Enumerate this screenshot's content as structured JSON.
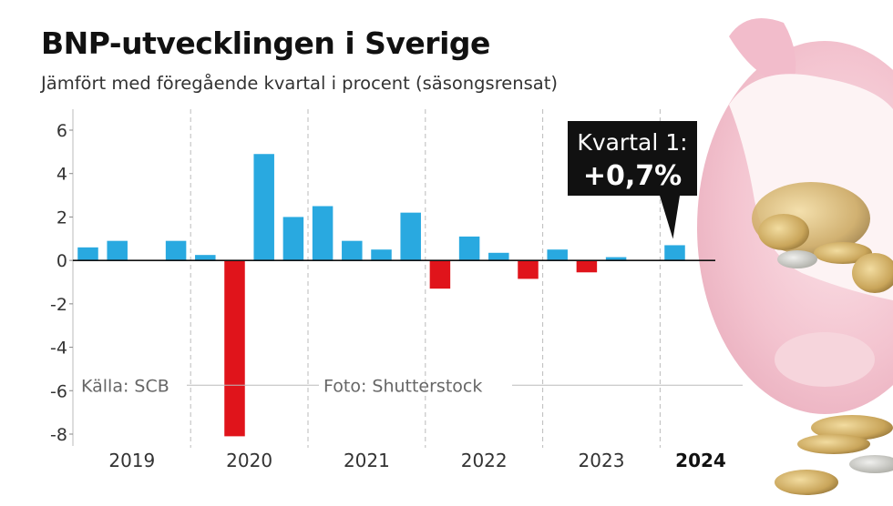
{
  "header": {
    "title": "BNP-utvecklingen i Sverige",
    "subtitle": "Jämfört med föregående kvartal i procent (säsongsrensat)"
  },
  "footer": {
    "source": "Källa: SCB",
    "photo": "Foto: Shutterstock"
  },
  "callout": {
    "line1": "Kvartal 1:",
    "line2": "+0,7%"
  },
  "colors": {
    "positive": "#29a9e0",
    "negative": "#e0141b",
    "callout_bg": "#111111"
  },
  "chart_data": {
    "type": "bar",
    "title": "BNP-utvecklingen i Sverige",
    "ylabel": "",
    "xlabel": "",
    "ylim": [
      -8,
      6
    ],
    "yticks": [
      6,
      4,
      2,
      0,
      -2,
      -4,
      -6,
      -8
    ],
    "grid": false,
    "years": [
      "2019",
      "2020",
      "2021",
      "2022",
      "2023",
      "2024"
    ],
    "bold_year": "2024",
    "quarters_per_year": 4,
    "values": [
      0.6,
      0.9,
      0,
      0.9,
      0.25,
      -8.1,
      4.9,
      2.0,
      2.5,
      0.9,
      0.5,
      2.2,
      -1.3,
      1.1,
      0.35,
      -0.85,
      0.5,
      -0.55,
      0.15,
      0,
      0.7
    ]
  }
}
